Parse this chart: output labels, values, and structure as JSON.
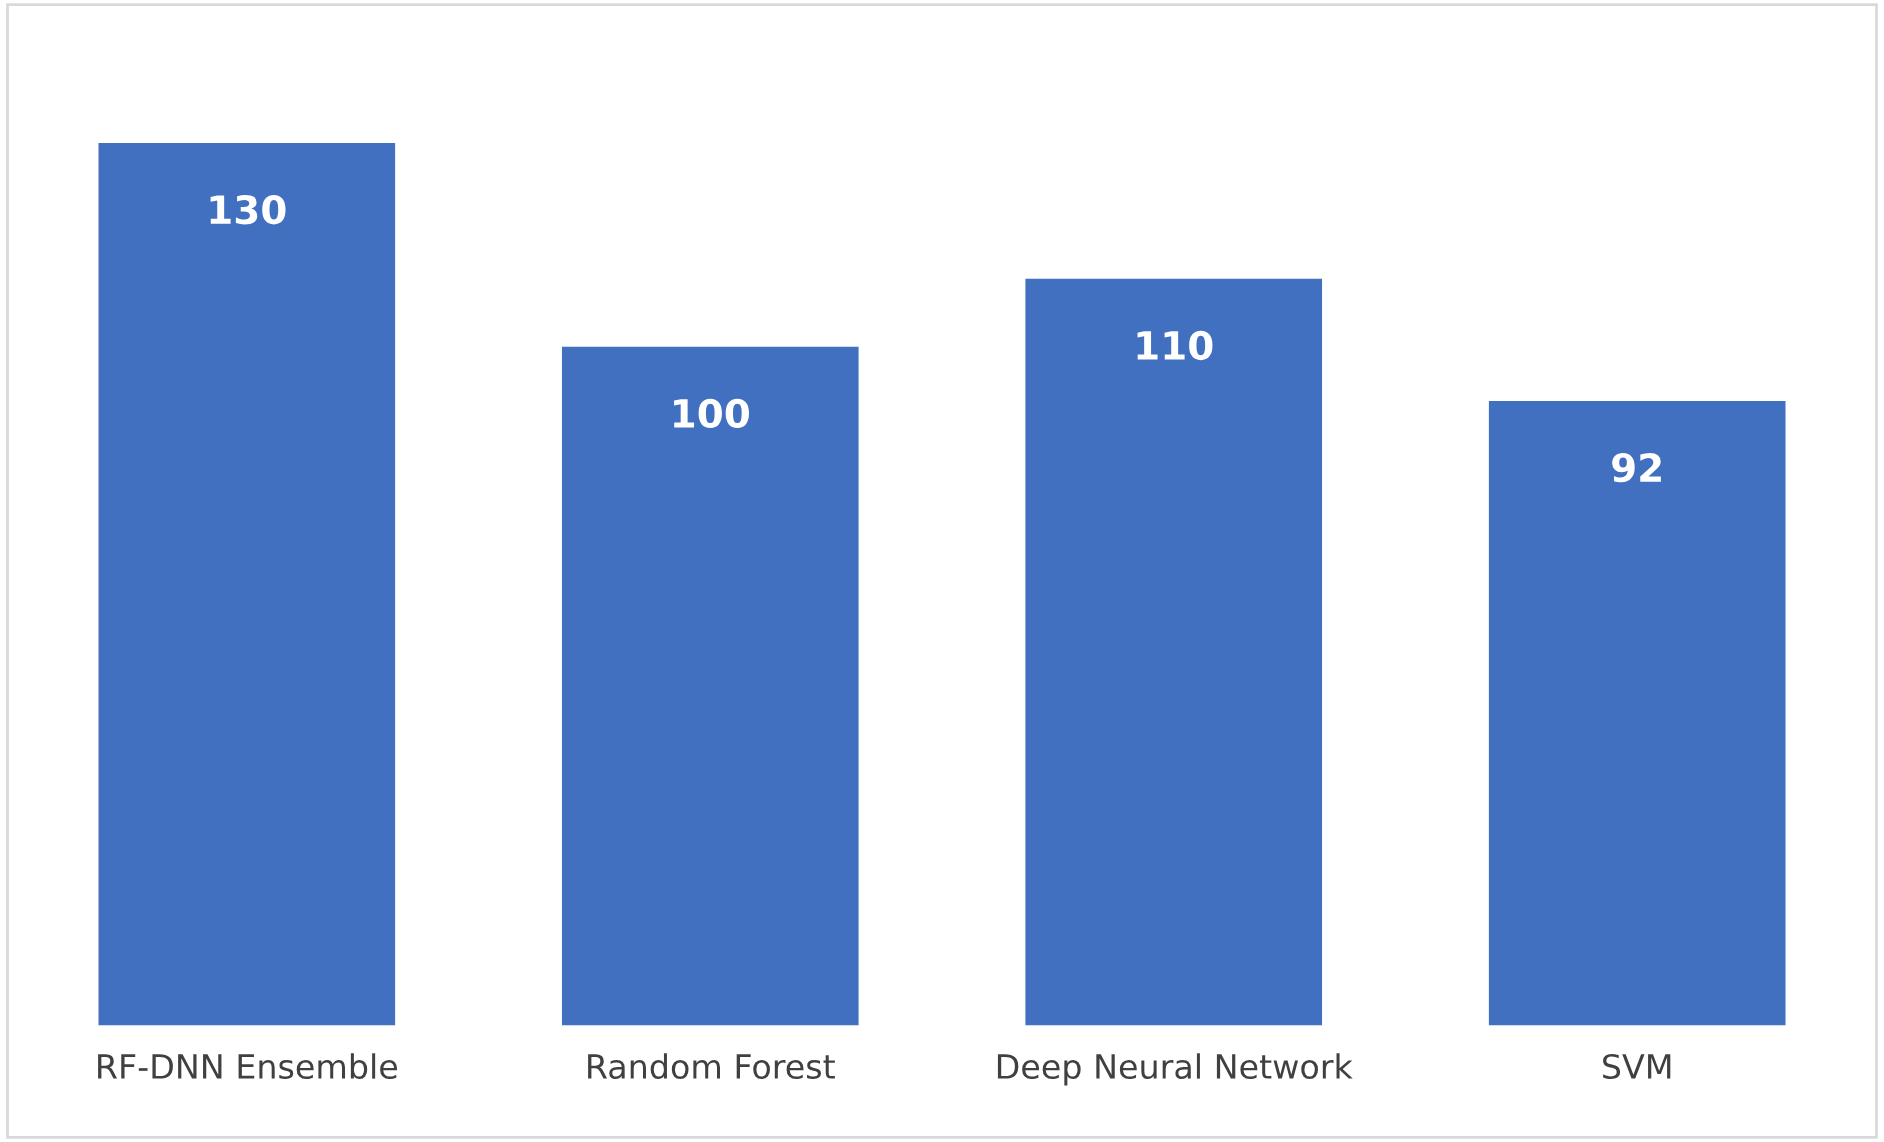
{
  "chart_data": {
    "type": "bar",
    "categories": [
      "RF-DNN Ensemble",
      "Random Forest",
      "Deep Neural Network",
      "SVM"
    ],
    "values": [
      130,
      100,
      110,
      92
    ],
    "color": "#4170c0",
    "data_labels": true
  }
}
